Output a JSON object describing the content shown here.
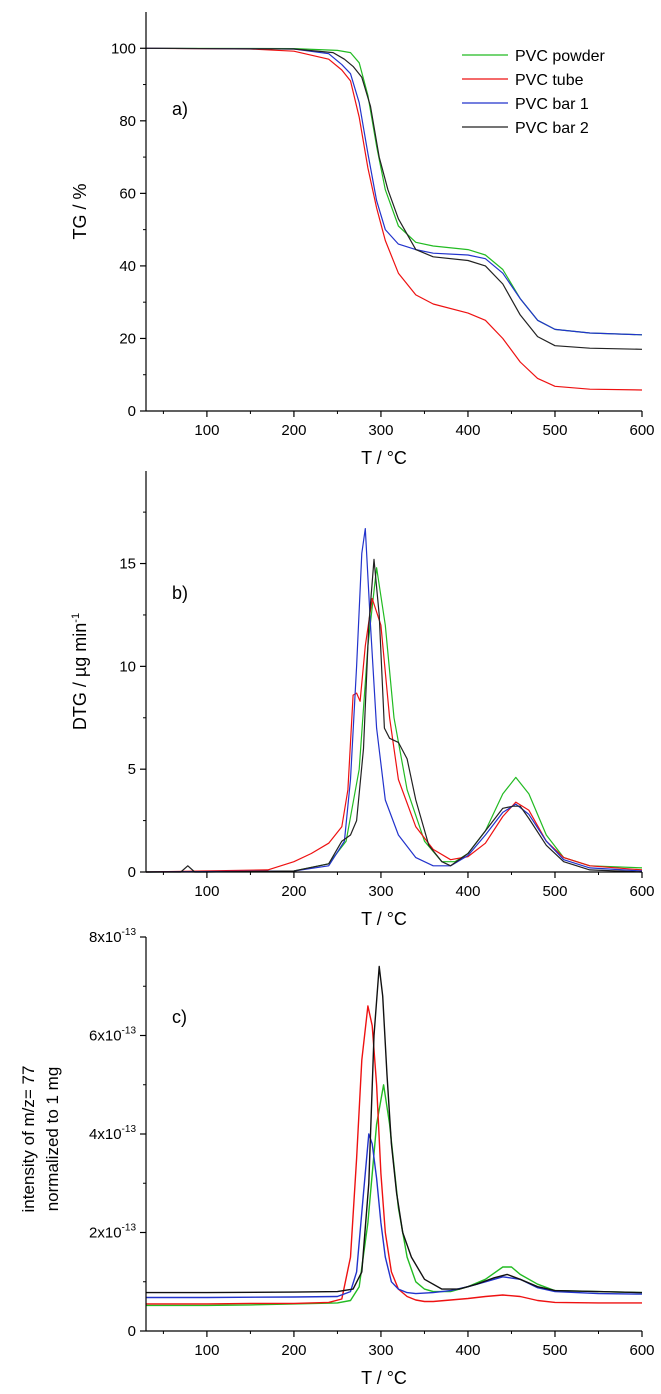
{
  "chart_data": [
    {
      "type": "line",
      "panel_label": "a)",
      "xlabel": "T / °C",
      "ylabel": "TG / %",
      "xlim": [
        30,
        600
      ],
      "ylim": [
        0,
        110
      ],
      "x_ticks": [
        100,
        200,
        300,
        400,
        500,
        600
      ],
      "y_ticks": [
        0,
        20,
        40,
        60,
        80,
        100
      ],
      "x_tick_labels": [
        "100",
        "200",
        "300",
        "400",
        "500",
        "600"
      ],
      "y_tick_labels": [
        "0",
        "20",
        "40",
        "60",
        "80",
        "100"
      ],
      "legend_placement": "top-right",
      "grid": false,
      "series": [
        {
          "name": "PVC powder",
          "color": "#22bb22",
          "x": [
            30,
            200,
            250,
            265,
            275,
            285,
            295,
            305,
            320,
            340,
            360,
            400,
            420,
            440,
            460,
            480,
            500,
            540,
            600
          ],
          "y": [
            100,
            99.9,
            99.4,
            98.8,
            96,
            87,
            73,
            61,
            51,
            46.5,
            45.5,
            44.5,
            43,
            39,
            31,
            25,
            22.5,
            21.5,
            21
          ]
        },
        {
          "name": "PVC tube",
          "color": "#ee1111",
          "x": [
            30,
            150,
            200,
            240,
            255,
            265,
            275,
            285,
            295,
            305,
            320,
            340,
            360,
            400,
            420,
            440,
            460,
            480,
            500,
            540,
            600
          ],
          "y": [
            100,
            99.8,
            99.2,
            97,
            94,
            91,
            81,
            67,
            56,
            47,
            38,
            32,
            29.5,
            27,
            25,
            20,
            13.5,
            9,
            6.8,
            6,
            5.8
          ]
        },
        {
          "name": "PVC bar 1",
          "color": "#2233cc",
          "x": [
            30,
            200,
            240,
            255,
            265,
            275,
            285,
            295,
            305,
            320,
            340,
            360,
            400,
            420,
            440,
            460,
            480,
            500,
            540,
            600
          ],
          "y": [
            100,
            99.8,
            98.5,
            95.5,
            93,
            85,
            71,
            58,
            50,
            46,
            44.5,
            43.5,
            43,
            42,
            38,
            31,
            25,
            22.5,
            21.5,
            21
          ]
        },
        {
          "name": "PVC bar 2",
          "color": "#222222",
          "x": [
            30,
            200,
            245,
            258,
            268,
            278,
            288,
            298,
            308,
            320,
            340,
            360,
            400,
            420,
            440,
            460,
            480,
            500,
            540,
            600
          ],
          "y": [
            100,
            99.8,
            98.8,
            97,
            95,
            92,
            84,
            70,
            61,
            53,
            44.5,
            42.5,
            41.5,
            40,
            35,
            26.5,
            20.5,
            18,
            17.3,
            17
          ]
        }
      ]
    },
    {
      "type": "line",
      "panel_label": "b)",
      "xlabel": "T / °C",
      "ylabel": "DTG / µg min",
      "ylabel_superscript": "-1",
      "xlim": [
        30,
        600
      ],
      "ylim": [
        0,
        19.5
      ],
      "x_ticks": [
        100,
        200,
        300,
        400,
        500,
        600
      ],
      "y_ticks": [
        0,
        5,
        10,
        15
      ],
      "x_tick_labels": [
        "100",
        "200",
        "300",
        "400",
        "500",
        "600"
      ],
      "y_tick_labels": [
        "0",
        "5",
        "10",
        "15"
      ],
      "grid": false,
      "series": [
        {
          "name": "PVC powder",
          "color": "#22bb22",
          "x": [
            30,
            200,
            240,
            260,
            275,
            285,
            295,
            305,
            315,
            330,
            350,
            370,
            385,
            400,
            420,
            440,
            455,
            470,
            490,
            510,
            540,
            600
          ],
          "y": [
            0,
            0.05,
            0.4,
            1.5,
            5,
            11,
            14.8,
            12,
            7.5,
            4,
            1.5,
            0.5,
            0.5,
            0.9,
            2,
            3.8,
            4.6,
            3.8,
            1.8,
            0.7,
            0.3,
            0.2
          ]
        },
        {
          "name": "PVC tube",
          "color": "#ee1111",
          "x": [
            30,
            170,
            200,
            220,
            240,
            255,
            262,
            268,
            272,
            276,
            282,
            290,
            300,
            310,
            320,
            340,
            360,
            380,
            400,
            420,
            440,
            455,
            470,
            490,
            510,
            540,
            600
          ],
          "y": [
            0,
            0.1,
            0.5,
            0.9,
            1.4,
            2.2,
            4,
            8.6,
            8.7,
            8.3,
            11,
            13.3,
            12,
            7.5,
            4.5,
            2.2,
            1.1,
            0.6,
            0.75,
            1.4,
            2.7,
            3.4,
            3.0,
            1.5,
            0.7,
            0.3,
            0.1
          ]
        },
        {
          "name": "PVC bar 1",
          "color": "#2233cc",
          "x": [
            30,
            200,
            240,
            258,
            265,
            272,
            278,
            282,
            288,
            295,
            305,
            320,
            340,
            360,
            380,
            400,
            420,
            440,
            455,
            470,
            490,
            510,
            540,
            600
          ],
          "y": [
            0,
            0.05,
            0.3,
            1.5,
            4.5,
            10,
            15.5,
            16.7,
            12,
            7,
            3.5,
            1.8,
            0.7,
            0.3,
            0.3,
            0.8,
            1.8,
            2.9,
            3.3,
            2.8,
            1.5,
            0.6,
            0.2,
            0.05
          ]
        },
        {
          "name": "PVC bar 2",
          "color": "#222222",
          "x": [
            30,
            70,
            78,
            86,
            100,
            200,
            240,
            255,
            265,
            272,
            280,
            286,
            292,
            298,
            304,
            310,
            320,
            330,
            340,
            355,
            370,
            380,
            400,
            420,
            440,
            452,
            460,
            470,
            490,
            510,
            540,
            600
          ],
          "y": [
            0,
            0,
            0.3,
            0,
            0,
            0.05,
            0.4,
            1.5,
            1.8,
            2.5,
            6,
            12,
            15.2,
            12.5,
            7,
            6.5,
            6.3,
            5.5,
            3.5,
            1.3,
            0.5,
            0.3,
            0.9,
            2.0,
            3.1,
            3.2,
            3.2,
            2.6,
            1.3,
            0.5,
            0.1,
            0
          ]
        }
      ]
    },
    {
      "type": "line",
      "panel_label": "c)",
      "xlabel": "T / °C",
      "ylabel_lines": [
        "intensity of m/z= 77",
        "normalized to 1 mg"
      ],
      "xlim": [
        30,
        600
      ],
      "ylim": [
        0,
        8e-13
      ],
      "x_ticks": [
        100,
        200,
        300,
        400,
        500,
        600
      ],
      "x_tick_labels": [
        "100",
        "200",
        "300",
        "400",
        "500",
        "600"
      ],
      "y_ticks": [
        0,
        2e-13,
        4e-13,
        6e-13,
        8e-13
      ],
      "y_tick_labels": [
        {
          "base": "0",
          "exp": ""
        },
        {
          "base": "2x10",
          "exp": "-13"
        },
        {
          "base": "4x10",
          "exp": "-13"
        },
        {
          "base": "6x10",
          "exp": "-13"
        },
        {
          "base": "8x10",
          "exp": "-13"
        }
      ],
      "grid": false,
      "series": [
        {
          "name": "PVC powder",
          "color": "#22bb22",
          "x": [
            30,
            100,
            150,
            200,
            250,
            265,
            275,
            285,
            295,
            303,
            310,
            320,
            330,
            340,
            350,
            360,
            380,
            400,
            420,
            440,
            450,
            460,
            480,
            500,
            550,
            600
          ],
          "y": [
            5.2e-14,
            5.2e-14,
            5.3e-14,
            5.5e-14,
            5.7e-14,
            6.2e-14,
            9e-14,
            2.2e-13,
            4.2e-13,
            5e-13,
            4.2e-13,
            2.5e-13,
            1.5e-13,
            1e-13,
            8.5e-14,
            8e-14,
            8e-14,
            9e-14,
            1.05e-13,
            1.3e-13,
            1.3e-13,
            1.15e-13,
            9.5e-14,
            8.2e-14,
            8e-14,
            7.8e-14
          ]
        },
        {
          "name": "PVC tube",
          "color": "#ee1111",
          "x": [
            30,
            100,
            150,
            200,
            240,
            255,
            265,
            272,
            278,
            285,
            290,
            295,
            300,
            305,
            312,
            320,
            330,
            340,
            350,
            360,
            380,
            400,
            420,
            440,
            460,
            480,
            500,
            550,
            600
          ],
          "y": [
            5.5e-14,
            5.5e-14,
            5.6e-14,
            5.6e-14,
            5.8e-14,
            6.5e-14,
            1.5e-13,
            3.5e-13,
            5.5e-13,
            6.6e-13,
            6.2e-13,
            5e-13,
            3.2e-13,
            2e-13,
            1.2e-13,
            8.5e-14,
            7e-14,
            6.3e-14,
            6e-14,
            6e-14,
            6.3e-14,
            6.6e-14,
            7e-14,
            7.3e-14,
            7e-14,
            6.2e-14,
            5.8e-14,
            5.7e-14,
            5.7e-14
          ]
        },
        {
          "name": "PVC bar 1",
          "color": "#2233cc",
          "x": [
            30,
            100,
            200,
            250,
            265,
            272,
            280,
            286,
            290,
            295,
            300,
            305,
            312,
            320,
            330,
            340,
            360,
            380,
            400,
            420,
            440,
            460,
            480,
            500,
            550,
            600
          ],
          "y": [
            6.8e-14,
            6.8e-14,
            6.9e-14,
            7e-14,
            8e-14,
            1.2e-13,
            2.8e-13,
            4e-13,
            3.8e-13,
            3.1e-13,
            2.2e-13,
            1.5e-13,
            1e-13,
            8.5e-14,
            7.8e-14,
            7.6e-14,
            7.8e-14,
            8.2e-14,
            9e-14,
            1e-13,
            1.1e-13,
            1.05e-13,
            8.8e-14,
            8e-14,
            7.6e-14,
            7.5e-14
          ]
        },
        {
          "name": "PVC bar 2",
          "color": "#111111",
          "x": [
            30,
            100,
            200,
            250,
            268,
            278,
            286,
            292,
            298,
            302,
            307,
            312,
            318,
            325,
            335,
            350,
            370,
            390,
            410,
            430,
            445,
            460,
            480,
            500,
            550,
            600
          ],
          "y": [
            7.8e-14,
            7.8e-14,
            7.9e-14,
            8e-14,
            8.5e-14,
            1.2e-13,
            3e-13,
            6e-13,
            7.4e-13,
            6.8e-13,
            5.2e-13,
            3.8e-13,
            2.8e-13,
            2e-13,
            1.5e-13,
            1.05e-13,
            8.5e-14,
            8.5e-14,
            9.5e-14,
            1.08e-13,
            1.15e-13,
            1.05e-13,
            9e-14,
            8.2e-14,
            8e-14,
            7.8e-14
          ]
        }
      ]
    }
  ]
}
